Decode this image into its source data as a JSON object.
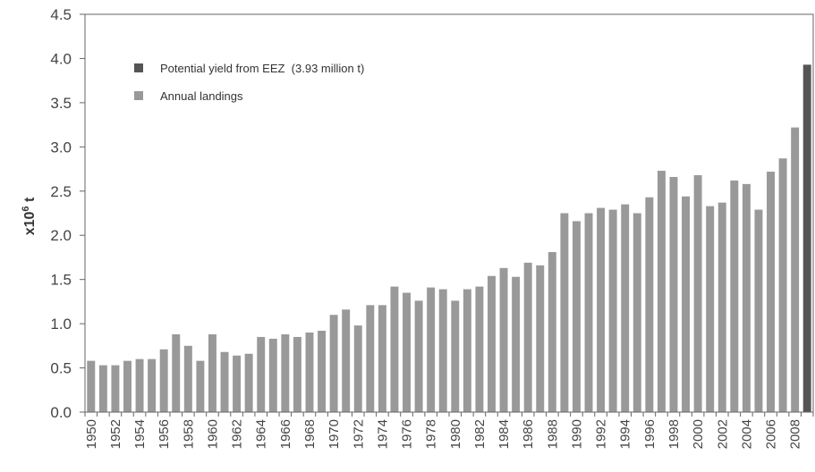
{
  "chart_data": {
    "type": "bar",
    "categories": [
      1950,
      1951,
      1952,
      1953,
      1954,
      1955,
      1956,
      1957,
      1958,
      1959,
      1960,
      1961,
      1962,
      1963,
      1964,
      1965,
      1966,
      1967,
      1968,
      1969,
      1970,
      1971,
      1972,
      1973,
      1974,
      1975,
      1976,
      1977,
      1978,
      1979,
      1980,
      1981,
      1982,
      1983,
      1984,
      1985,
      1986,
      1987,
      1988,
      1989,
      1990,
      1991,
      1992,
      1993,
      1994,
      1995,
      1996,
      1997,
      1998,
      1999,
      2000,
      2001,
      2002,
      2003,
      2004,
      2005,
      2006,
      2007,
      2008,
      2009
    ],
    "x_tick_labels": [
      "1950",
      "1952",
      "1954",
      "1956",
      "1958",
      "1960",
      "1962",
      "1964",
      "1966",
      "1968",
      "1970",
      "1972",
      "1974",
      "1976",
      "1978",
      "1980",
      "1982",
      "1984",
      "1986",
      "1988",
      "1990",
      "1992",
      "1994",
      "1996",
      "1998",
      "2000",
      "2002",
      "2004",
      "2006",
      "2008"
    ],
    "series": [
      {
        "name": "Annual landings",
        "color": "#999999",
        "values": [
          0.58,
          0.53,
          0.53,
          0.58,
          0.6,
          0.6,
          0.71,
          0.88,
          0.75,
          0.58,
          0.88,
          0.68,
          0.64,
          0.66,
          0.85,
          0.83,
          0.88,
          0.85,
          0.9,
          0.92,
          1.1,
          1.16,
          0.98,
          1.21,
          1.21,
          1.42,
          1.35,
          1.26,
          1.41,
          1.39,
          1.26,
          1.39,
          1.42,
          1.54,
          1.63,
          1.53,
          1.69,
          1.66,
          1.81,
          2.25,
          2.16,
          2.25,
          2.31,
          2.29,
          2.35,
          2.25,
          2.43,
          2.73,
          2.66,
          2.44,
          2.68,
          2.33,
          2.37,
          2.62,
          2.58,
          2.29,
          2.72,
          2.87,
          3.22,
          null
        ]
      },
      {
        "name": "Potential yield from EEZ  (3.93 million t)",
        "color": "#555555",
        "values": [
          null,
          null,
          null,
          null,
          null,
          null,
          null,
          null,
          null,
          null,
          null,
          null,
          null,
          null,
          null,
          null,
          null,
          null,
          null,
          null,
          null,
          null,
          null,
          null,
          null,
          null,
          null,
          null,
          null,
          null,
          null,
          null,
          null,
          null,
          null,
          null,
          null,
          null,
          null,
          null,
          null,
          null,
          null,
          null,
          null,
          null,
          null,
          null,
          null,
          null,
          null,
          null,
          null,
          null,
          null,
          null,
          null,
          null,
          null,
          3.93
        ]
      }
    ],
    "ylabel_main": "x10",
    "ylabel_sup": "6",
    "ylabel_unit": " t",
    "ylim": [
      0,
      4.5
    ],
    "yticks": [
      "0.0",
      "0.5",
      "1.0",
      "1.5",
      "2.0",
      "2.5",
      "3.0",
      "3.5",
      "4.0",
      "4.5"
    ],
    "legend_position": "upper-left",
    "grid": false
  }
}
